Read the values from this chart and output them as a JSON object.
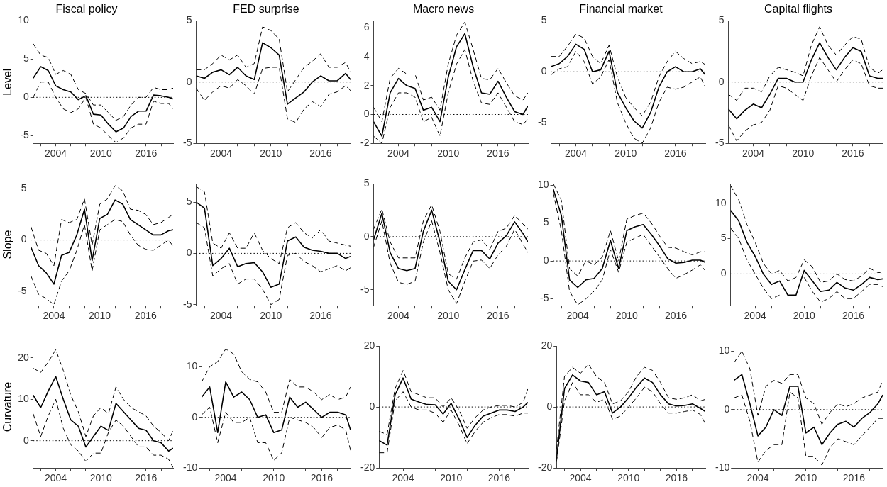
{
  "chart_data": [
    {
      "type": "line",
      "title": "Fiscal policy",
      "ylabel": "Level",
      "x": [
        2001,
        2002,
        2003,
        2004,
        2005,
        2006,
        2007,
        2008,
        2009,
        2010,
        2011,
        2012,
        2013,
        2014,
        2015,
        2016,
        2017,
        2018,
        2019,
        2019.6
      ],
      "xlim": [
        2001,
        2019.6
      ],
      "xticks": [
        {
          "value": 2002,
          "label": null
        },
        2004,
        {
          "value": 2006,
          "label": null
        },
        {
          "value": 2008,
          "label": null
        },
        2010,
        {
          "value": 2012,
          "label": null
        },
        {
          "value": 2014,
          "label": null
        },
        2016,
        {
          "value": 2018,
          "label": null
        }
      ],
      "ylim": [
        -6,
        10
      ],
      "yticks": [
        -5,
        0,
        5,
        10
      ],
      "grid": false,
      "legend": false,
      "ref_lines": [
        {
          "axis": "y",
          "value": 0,
          "line_style": "dotted",
          "color": "#000000"
        }
      ],
      "series": [
        {
          "color": "#000000",
          "line_style": "solid",
          "values": [
            2.5,
            4,
            3.5,
            1.5,
            1,
            0.7,
            -0.3,
            0.2,
            -2.2,
            -2.3,
            -3.5,
            -4.5,
            -4,
            -2.5,
            -1.8,
            -1.8,
            0.3,
            0.2,
            0,
            -0.2
          ]
        },
        {
          "color": "#000000",
          "line_style": "dashed",
          "values": [
            7,
            5.5,
            5.2,
            3,
            3.5,
            3,
            1,
            0.5,
            -1,
            -1,
            -2,
            -3,
            -2.5,
            -1,
            0,
            0,
            1.3,
            1,
            1,
            1.2
          ]
        },
        {
          "color": "#000000",
          "line_style": "dashed",
          "values": [
            0,
            2,
            2,
            0,
            -1.5,
            -2,
            -1.5,
            0,
            -3.5,
            -4,
            -5,
            -5.9,
            -5.3,
            -4,
            -3.5,
            -3.5,
            -0.5,
            -0.8,
            -0.8,
            -1.5
          ]
        }
      ]
    },
    {
      "type": "line",
      "title": "FED surprise",
      "x": [
        2001,
        2002,
        2003,
        2004,
        2005,
        2006,
        2007,
        2008,
        2009,
        2010,
        2011,
        2012,
        2013,
        2014,
        2015,
        2016,
        2017,
        2018,
        2019,
        2019.6
      ],
      "xlim": [
        2001,
        2019.6
      ],
      "xticks": [
        {
          "value": 2002,
          "label": null
        },
        2004,
        {
          "value": 2006,
          "label": null
        },
        {
          "value": 2008,
          "label": null
        },
        2010,
        {
          "value": 2012,
          "label": null
        },
        {
          "value": 2014,
          "label": null
        },
        2016,
        {
          "value": 2018,
          "label": null
        }
      ],
      "ylim": [
        -5,
        5
      ],
      "yticks": [
        -5,
        0,
        5
      ],
      "grid": false,
      "legend": false,
      "ref_lines": [
        {
          "axis": "y",
          "value": 0,
          "line_style": "dotted",
          "color": "#000000"
        }
      ],
      "series": [
        {
          "color": "#000000",
          "line_style": "solid",
          "values": [
            0.5,
            0.3,
            0.8,
            1,
            0.6,
            1.2,
            0.5,
            0.2,
            3.2,
            2.8,
            2.2,
            -1.8,
            -1.3,
            -0.8,
            0,
            0.5,
            0.1,
            0.1,
            0.7,
            0.2
          ]
        },
        {
          "color": "#000000",
          "line_style": "dashed",
          "values": [
            1,
            1,
            1.5,
            2.2,
            1.8,
            2.2,
            1.2,
            1.5,
            4.5,
            4.2,
            3.5,
            -0.8,
            0.2,
            1.2,
            1.7,
            2.3,
            1.2,
            1.2,
            1.6,
            0.8
          ]
        },
        {
          "color": "#000000",
          "line_style": "dashed",
          "values": [
            -0.5,
            -1.5,
            -0.8,
            -0.3,
            -0.5,
            0.2,
            -0.3,
            -1,
            1.1,
            1.2,
            1.2,
            -3,
            -3.3,
            -2.2,
            -1.6,
            -2,
            -1,
            -0.8,
            -0.3,
            -0.7
          ]
        }
      ]
    },
    {
      "type": "line",
      "title": "Macro news",
      "x": [
        2001,
        2002,
        2003,
        2004,
        2005,
        2006,
        2007,
        2008,
        2009,
        2010,
        2011,
        2012,
        2013,
        2014,
        2015,
        2016,
        2017,
        2018,
        2019,
        2019.6
      ],
      "xlim": [
        2001,
        2019.6
      ],
      "xticks": [
        {
          "value": 2002,
          "label": null
        },
        2004,
        {
          "value": 2006,
          "label": null
        },
        {
          "value": 2008,
          "label": null
        },
        2010,
        {
          "value": 2012,
          "label": null
        },
        {
          "value": 2014,
          "label": null
        },
        2016,
        {
          "value": 2018,
          "label": null
        }
      ],
      "ylim": [
        -2,
        6.5
      ],
      "yticks": [
        -2,
        0,
        2,
        4,
        6
      ],
      "grid": false,
      "legend": false,
      "ref_lines": [
        {
          "axis": "y",
          "value": 0,
          "line_style": "dotted",
          "color": "#000000"
        }
      ],
      "series": [
        {
          "color": "#000000",
          "line_style": "solid",
          "values": [
            -0.5,
            -1.5,
            1.5,
            2.5,
            2,
            1.8,
            0.3,
            0.5,
            -0.5,
            2.6,
            4.7,
            5.6,
            3.3,
            1.5,
            1.4,
            2.3,
            1.2,
            0.2,
            0,
            0.6
          ]
        },
        {
          "color": "#000000",
          "line_style": "dashed",
          "values": [
            0.5,
            -0.5,
            2.5,
            3.2,
            2.8,
            2.8,
            1,
            1.2,
            0.3,
            3.5,
            5.5,
            6.4,
            4.5,
            2.5,
            2.4,
            3.2,
            2.2,
            1.3,
            1,
            1.5
          ]
        },
        {
          "color": "#000000",
          "line_style": "dashed",
          "values": [
            -1.5,
            -2,
            0.5,
            1.5,
            1.5,
            1.2,
            -0.5,
            -0.2,
            -1.5,
            1.5,
            3.5,
            4.5,
            2.3,
            0.8,
            0.7,
            1.5,
            0.5,
            -0.5,
            -0.7,
            -0.3
          ]
        }
      ]
    },
    {
      "type": "line",
      "title": "Financial market",
      "x": [
        2001,
        2002,
        2003,
        2004,
        2005,
        2006,
        2007,
        2008,
        2009,
        2010,
        2011,
        2012,
        2013,
        2014,
        2015,
        2016,
        2017,
        2018,
        2019,
        2019.6
      ],
      "xlim": [
        2001,
        2019.6
      ],
      "xticks": [
        {
          "value": 2002,
          "label": null
        },
        2004,
        {
          "value": 2006,
          "label": null
        },
        {
          "value": 2008,
          "label": null
        },
        2010,
        {
          "value": 2012,
          "label": null
        },
        {
          "value": 2014,
          "label": null
        },
        2016,
        {
          "value": 2018,
          "label": null
        }
      ],
      "ylim": [
        -7,
        5
      ],
      "yticks": [
        -5,
        0,
        5
      ],
      "grid": false,
      "legend": false,
      "ref_lines": [
        {
          "axis": "y",
          "value": 0,
          "line_style": "dotted",
          "color": "#000000"
        }
      ],
      "series": [
        {
          "color": "#000000",
          "line_style": "solid",
          "values": [
            0.5,
            0.8,
            1.5,
            2.7,
            2.2,
            0,
            0.2,
            2,
            -2,
            -3.5,
            -4.8,
            -5.5,
            -4,
            -1.5,
            0,
            0.5,
            0,
            0,
            0.3,
            -0.3
          ]
        },
        {
          "color": "#000000",
          "line_style": "dashed",
          "values": [
            1.5,
            1.5,
            2.5,
            3.7,
            3.3,
            1.5,
            0.8,
            2.6,
            -0.5,
            -2.5,
            -3.5,
            -4.3,
            -3,
            -0.5,
            1,
            2,
            1.3,
            0.8,
            1,
            0.7
          ]
        },
        {
          "color": "#000000",
          "line_style": "dashed",
          "values": [
            -0.3,
            0.3,
            0.5,
            2,
            1,
            -1.2,
            -0.5,
            1.2,
            -3,
            -5,
            -6.5,
            -7,
            -5.5,
            -3,
            -1.5,
            -1.7,
            -1.5,
            -1,
            -0.5,
            -1.5
          ]
        }
      ]
    },
    {
      "type": "line",
      "title": "Capital flights",
      "x": [
        2001,
        2002,
        2003,
        2004,
        2005,
        2006,
        2007,
        2008,
        2009,
        2010,
        2011,
        2012,
        2013,
        2014,
        2015,
        2016,
        2017,
        2018,
        2019,
        2019.6
      ],
      "xlim": [
        2001,
        2019.6
      ],
      "xticks": [
        {
          "value": 2002,
          "label": null
        },
        2004,
        {
          "value": 2006,
          "label": null
        },
        {
          "value": 2008,
          "label": null
        },
        2010,
        {
          "value": 2012,
          "label": null
        },
        {
          "value": 2014,
          "label": null
        },
        2016,
        {
          "value": 2018,
          "label": null
        }
      ],
      "ylim": [
        -5,
        5
      ],
      "yticks": [
        -5,
        0,
        5
      ],
      "grid": false,
      "legend": false,
      "ref_lines": [
        {
          "axis": "y",
          "value": 0,
          "line_style": "dotted",
          "color": "#000000"
        }
      ],
      "series": [
        {
          "color": "#000000",
          "line_style": "solid",
          "values": [
            -2.2,
            -3,
            -2.3,
            -1.8,
            -2.1,
            -1,
            0.3,
            0.3,
            0,
            0,
            1.8,
            3.2,
            2,
            1,
            2,
            2.8,
            2.5,
            0.5,
            0.3,
            0.3
          ]
        },
        {
          "color": "#000000",
          "line_style": "dashed",
          "values": [
            -1,
            -1.5,
            -0.5,
            -0.5,
            -0.8,
            0.5,
            1.2,
            1,
            0.8,
            0.5,
            3,
            4.5,
            3,
            2.2,
            3,
            3.7,
            3.5,
            1.2,
            0.7,
            1
          ]
        },
        {
          "color": "#000000",
          "line_style": "dashed",
          "values": [
            -3.5,
            -4.8,
            -4,
            -3.5,
            -3.3,
            -2.3,
            -0.3,
            -0.5,
            -1,
            -1.5,
            0.5,
            2,
            1,
            0,
            1,
            1.8,
            1.5,
            -0.3,
            -0.5,
            -0.5
          ]
        }
      ]
    },
    {
      "type": "line",
      "ylabel": "Slope",
      "x": [
        2001,
        2002,
        2003,
        2004,
        2005,
        2006,
        2007,
        2008,
        2009,
        2010,
        2011,
        2012,
        2013,
        2014,
        2015,
        2016,
        2017,
        2018,
        2019,
        2019.6
      ],
      "xlim": [
        2001,
        2019.6
      ],
      "xticks": [
        {
          "value": 2002,
          "label": null
        },
        2004,
        {
          "value": 2006,
          "label": null
        },
        {
          "value": 2008,
          "label": null
        },
        2010,
        {
          "value": 2012,
          "label": null
        },
        {
          "value": 2014,
          "label": null
        },
        2016,
        {
          "value": 2018,
          "label": null
        }
      ],
      "ylim": [
        -6.4,
        5.5
      ],
      "yticks": [
        -5,
        0,
        5
      ],
      "grid": false,
      "legend": false,
      "ref_lines": [
        {
          "axis": "y",
          "value": 0,
          "line_style": "dotted",
          "color": "#000000"
        }
      ],
      "series": [
        {
          "color": "#000000",
          "line_style": "solid",
          "values": [
            -0.7,
            -2.5,
            -3.2,
            -4.3,
            -1.5,
            -1.2,
            0.5,
            3,
            -2,
            2.1,
            2.5,
            3.9,
            3.5,
            2,
            1.5,
            1,
            0.5,
            0.5,
            0.9,
            1
          ]
        },
        {
          "color": "#000000",
          "line_style": "dashed",
          "values": [
            1.3,
            -1,
            -1.3,
            -2.5,
            2,
            1.7,
            2,
            4,
            -0.5,
            3.5,
            4,
            5.3,
            4.8,
            3,
            2.9,
            2.5,
            1.5,
            1.7,
            2.2,
            2.5
          ]
        },
        {
          "color": "#000000",
          "line_style": "dashed",
          "values": [
            -3.5,
            -5.3,
            -5.7,
            -6.3,
            -4,
            -3,
            -1,
            1.5,
            -3,
            1,
            1.5,
            2,
            1.8,
            0.5,
            -0.5,
            -0.9,
            -1,
            -0.5,
            0,
            -0.6
          ]
        }
      ]
    },
    {
      "type": "line",
      "x": [
        2001,
        2002,
        2003,
        2004,
        2005,
        2006,
        2007,
        2008,
        2009,
        2010,
        2011,
        2012,
        2013,
        2014,
        2015,
        2016,
        2017,
        2018,
        2019,
        2019.6
      ],
      "xlim": [
        2001,
        2019.6
      ],
      "xticks": [
        {
          "value": 2002,
          "label": null
        },
        2004,
        {
          "value": 2006,
          "label": null
        },
        {
          "value": 2008,
          "label": null
        },
        2010,
        {
          "value": 2012,
          "label": null
        },
        {
          "value": 2014,
          "label": null
        },
        2016,
        {
          "value": 2018,
          "label": null
        }
      ],
      "ylim": [
        -5.1,
        6.8
      ],
      "yticks": [
        -5,
        0,
        5
      ],
      "grid": false,
      "legend": false,
      "ref_lines": [
        {
          "axis": "y",
          "value": 0,
          "line_style": "dotted",
          "color": "#000000"
        }
      ],
      "series": [
        {
          "color": "#000000",
          "line_style": "solid",
          "values": [
            5,
            4.4,
            -1.2,
            -0.5,
            0.5,
            -1.3,
            -1,
            -0.9,
            -1.8,
            -3.3,
            -3,
            1.2,
            1.6,
            0.6,
            0.3,
            0.2,
            0,
            0,
            -0.5,
            -0.3
          ]
        },
        {
          "color": "#000000",
          "line_style": "dashed",
          "values": [
            6.5,
            6,
            1,
            0.5,
            2,
            0.5,
            0.5,
            2,
            0.3,
            -0.5,
            -1,
            2.5,
            3,
            2,
            1.5,
            2.3,
            1.2,
            1,
            0.8,
            0.7
          ]
        },
        {
          "color": "#000000",
          "line_style": "dashed",
          "values": [
            3,
            2.5,
            -2.2,
            -1.5,
            -1,
            -3,
            -2.5,
            -2.5,
            -3.5,
            -5,
            -4.5,
            -0.2,
            0,
            -0.8,
            -1.2,
            -1.8,
            -1.5,
            -1.2,
            -1.7,
            -1.4
          ]
        }
      ]
    },
    {
      "type": "line",
      "x": [
        2001,
        2002,
        2003,
        2004,
        2005,
        2006,
        2007,
        2008,
        2009,
        2010,
        2011,
        2012,
        2013,
        2014,
        2015,
        2016,
        2017,
        2018,
        2019,
        2019.6
      ],
      "xlim": [
        2001,
        2019.6
      ],
      "xticks": [
        {
          "value": 2002,
          "label": null
        },
        2004,
        {
          "value": 2006,
          "label": null
        },
        {
          "value": 2008,
          "label": null
        },
        2010,
        {
          "value": 2012,
          "label": null
        },
        {
          "value": 2014,
          "label": null
        },
        2016,
        {
          "value": 2018,
          "label": null
        }
      ],
      "ylim": [
        -6.5,
        5
      ],
      "yticks": [
        -5,
        0,
        5
      ],
      "grid": false,
      "legend": false,
      "ref_lines": [
        {
          "axis": "y",
          "value": 0,
          "line_style": "dotted",
          "color": "#000000"
        }
      ],
      "series": [
        {
          "color": "#000000",
          "line_style": "solid",
          "values": [
            -0.3,
            2.2,
            -1.5,
            -3,
            -3.2,
            -3,
            0.5,
            2.5,
            -0.5,
            -4.2,
            -5,
            -3.1,
            -1.3,
            -1.3,
            -2.1,
            -0.6,
            0.1,
            1.4,
            0.3,
            -0.5
          ]
        },
        {
          "color": "#000000",
          "line_style": "dashed",
          "values": [
            0.7,
            2.6,
            -0.5,
            -2,
            -2,
            -2,
            1.5,
            3,
            0.5,
            -3.5,
            -4,
            -2,
            -0.5,
            -0.3,
            -1.2,
            0.5,
            0.8,
            2,
            1.2,
            0.7
          ]
        },
        {
          "color": "#000000",
          "line_style": "dashed",
          "values": [
            -1,
            1.5,
            -2.5,
            -4.3,
            -4.5,
            -4.2,
            -0.5,
            1.5,
            -1.5,
            -5,
            -6.3,
            -4.2,
            -2.3,
            -2.2,
            -3,
            -1.7,
            -0.9,
            0.7,
            -0.7,
            -1.5
          ]
        }
      ]
    },
    {
      "type": "line",
      "x": [
        2001,
        2002,
        2003,
        2004,
        2005,
        2006,
        2007,
        2008,
        2009,
        2010,
        2011,
        2012,
        2013,
        2014,
        2015,
        2016,
        2017,
        2018,
        2019,
        2019.6
      ],
      "xlim": [
        2001,
        2019.6
      ],
      "xticks": [
        {
          "value": 2002,
          "label": null
        },
        2004,
        {
          "value": 2006,
          "label": null
        },
        {
          "value": 2008,
          "label": null
        },
        2010,
        {
          "value": 2012,
          "label": null
        },
        {
          "value": 2014,
          "label": null
        },
        2016,
        {
          "value": 2018,
          "label": null
        }
      ],
      "ylim": [
        -5.9,
        10.2
      ],
      "yticks": [
        -5,
        0,
        5,
        10
      ],
      "grid": false,
      "legend": false,
      "ref_lines": [
        {
          "axis": "y",
          "value": 0,
          "line_style": "dotted",
          "color": "#000000"
        }
      ],
      "series": [
        {
          "color": "#000000",
          "line_style": "solid",
          "values": [
            9.5,
            6,
            -2.5,
            -3.5,
            -2.5,
            -2.3,
            -1,
            2.7,
            -1,
            4,
            4.5,
            4.8,
            3.5,
            2,
            0.3,
            -0.3,
            -0.2,
            0.1,
            0.1,
            -0.2
          ]
        },
        {
          "color": "#000000",
          "line_style": "dashed",
          "values": [
            10.2,
            8,
            -1,
            -2,
            0,
            -0.5,
            0.5,
            4,
            0,
            5.5,
            6,
            6.3,
            5,
            3.3,
            1.8,
            1.7,
            1.2,
            0.8,
            1.2,
            1.2
          ]
        },
        {
          "color": "#000000",
          "line_style": "dashed",
          "values": [
            9,
            4,
            -4,
            -5.8,
            -5,
            -4,
            -2.5,
            1.5,
            -1.5,
            2.5,
            3,
            3.5,
            2,
            0.5,
            -1,
            -2.3,
            -1.8,
            -1.2,
            -0.5,
            -1.3
          ]
        }
      ]
    },
    {
      "type": "line",
      "x": [
        2001,
        2002,
        2003,
        2004,
        2005,
        2006,
        2007,
        2008,
        2009,
        2010,
        2011,
        2012,
        2013,
        2014,
        2015,
        2016,
        2017,
        2018,
        2019,
        2019.6
      ],
      "xlim": [
        2001,
        2019.6
      ],
      "xticks": [
        {
          "value": 2002,
          "label": null
        },
        2004,
        {
          "value": 2006,
          "label": null
        },
        {
          "value": 2008,
          "label": null
        },
        2010,
        {
          "value": 2012,
          "label": null
        },
        {
          "value": 2014,
          "label": null
        },
        2016,
        {
          "value": 2018,
          "label": null
        }
      ],
      "ylim": [
        -4.5,
        12.8
      ],
      "yticks": [
        0,
        5,
        10
      ],
      "grid": false,
      "legend": false,
      "ref_lines": [
        {
          "axis": "y",
          "value": 0,
          "line_style": "dotted",
          "color": "#000000"
        }
      ],
      "series": [
        {
          "color": "#000000",
          "line_style": "solid",
          "values": [
            9,
            7.5,
            4.5,
            2.5,
            0,
            -1.5,
            -1,
            -3,
            -3,
            0.5,
            -1,
            -2.5,
            -2.3,
            -1.2,
            -2,
            -2.3,
            -1.5,
            -0.5,
            -0.8,
            -0.7
          ]
        },
        {
          "color": "#000000",
          "line_style": "dashed",
          "values": [
            12.5,
            10.5,
            7,
            4.5,
            1.5,
            0,
            0.5,
            -1,
            -0.5,
            2,
            1,
            -1.2,
            -1,
            0,
            -0.8,
            -1,
            -0.3,
            0.8,
            0.2,
            0.2
          ]
        },
        {
          "color": "#000000",
          "line_style": "dashed",
          "values": [
            6.5,
            5,
            2,
            0,
            -2,
            -3.5,
            -3,
            null,
            null,
            -0.5,
            -2.5,
            -4,
            -3.5,
            -2.5,
            -3.5,
            -3.5,
            -2.5,
            -1.5,
            -1.5,
            -1.8
          ]
        }
      ]
    },
    {
      "type": "line",
      "ylabel": "Curvature",
      "x": [
        2001,
        2002,
        2003,
        2004,
        2005,
        2006,
        2007,
        2008,
        2009,
        2010,
        2011,
        2012,
        2013,
        2014,
        2015,
        2016,
        2017,
        2018,
        2019,
        2019.6
      ],
      "xlim": [
        2001,
        2019.6
      ],
      "xticks": [
        {
          "value": 2002,
          "label": null
        },
        2004,
        {
          "value": 2006,
          "label": null
        },
        {
          "value": 2008,
          "label": null
        },
        2010,
        {
          "value": 2012,
          "label": null
        },
        {
          "value": 2014,
          "label": null
        },
        2016,
        {
          "value": 2018,
          "label": null
        }
      ],
      "ylim": [
        -6.6,
        22.9
      ],
      "yticks": [
        0,
        10,
        20
      ],
      "grid": false,
      "legend": false,
      "ref_lines": [
        {
          "axis": "y",
          "value": 0,
          "line_style": "dotted",
          "color": "#000000"
        }
      ],
      "series": [
        {
          "color": "#000000",
          "line_style": "solid",
          "values": [
            11,
            8,
            12,
            15.5,
            10,
            5,
            3.5,
            -1.5,
            1,
            3.5,
            2.5,
            9,
            7,
            5,
            3,
            2.5,
            0,
            -0.5,
            -2.5,
            -1.8
          ]
        },
        {
          "color": "#000000",
          "line_style": "dashed",
          "values": [
            17.5,
            16.5,
            19,
            22,
            17,
            11,
            7,
            1,
            6,
            8,
            6.5,
            13,
            10,
            8,
            7,
            6,
            3.5,
            2,
            0,
            2.5
          ]
        },
        {
          "color": "#000000",
          "line_style": "dashed",
          "values": [
            6.5,
            1,
            6,
            10,
            3,
            -1,
            -2.5,
            -5,
            -3,
            -3,
            2,
            5,
            3.5,
            1,
            -1.5,
            -1.5,
            -3.5,
            -3.5,
            -4.5,
            -6.5
          ]
        }
      ]
    },
    {
      "type": "line",
      "x": [
        2001,
        2002,
        2003,
        2004,
        2005,
        2006,
        2007,
        2008,
        2009,
        2010,
        2011,
        2012,
        2013,
        2014,
        2015,
        2016,
        2017,
        2018,
        2019,
        2019.6
      ],
      "xlim": [
        2001,
        2019.6
      ],
      "xticks": [
        {
          "value": 2002,
          "label": null
        },
        2004,
        {
          "value": 2006,
          "label": null
        },
        {
          "value": 2008,
          "label": null
        },
        2010,
        {
          "value": 2012,
          "label": null
        },
        {
          "value": 2014,
          "label": null
        },
        2016,
        {
          "value": 2018,
          "label": null
        }
      ],
      "ylim": [
        -10,
        14.1
      ],
      "yticks": [
        -10,
        0,
        10
      ],
      "grid": false,
      "legend": false,
      "ref_lines": [
        {
          "axis": "y",
          "value": 0,
          "line_style": "dotted",
          "color": "#000000"
        }
      ],
      "series": [
        {
          "color": "#000000",
          "line_style": "solid",
          "values": [
            4,
            6,
            -3,
            7,
            4,
            5,
            3.5,
            0,
            0.5,
            -3,
            -2.5,
            4,
            2,
            3,
            1.5,
            0,
            1,
            1,
            0.5,
            -2.5
          ]
        },
        {
          "color": "#000000",
          "line_style": "dashed",
          "values": [
            7,
            10,
            11,
            13.5,
            12.5,
            9,
            7.5,
            7,
            5,
            1,
            1,
            7.5,
            6,
            6,
            5,
            3.5,
            4.5,
            3.5,
            4,
            6
          ]
        },
        {
          "color": "#000000",
          "line_style": "dashed",
          "values": [
            0.5,
            2,
            -5,
            1,
            -1,
            -1,
            0,
            -5,
            -5,
            -8.5,
            -7,
            0,
            -0.5,
            -1,
            -2,
            -4,
            -2,
            -1.5,
            -2.5,
            -6.5
          ]
        }
      ]
    },
    {
      "type": "line",
      "x": [
        2001,
        2002,
        2003,
        2004,
        2005,
        2006,
        2007,
        2008,
        2009,
        2010,
        2011,
        2012,
        2013,
        2014,
        2015,
        2016,
        2017,
        2018,
        2019,
        2019.6
      ],
      "xlim": [
        2001,
        2019.6
      ],
      "xticks": [
        {
          "value": 2002,
          "label": null
        },
        2004,
        {
          "value": 2006,
          "label": null
        },
        {
          "value": 2008,
          "label": null
        },
        2010,
        {
          "value": 2012,
          "label": null
        },
        {
          "value": 2014,
          "label": null
        },
        2016,
        {
          "value": 2018,
          "label": null
        }
      ],
      "ylim": [
        -20,
        20
      ],
      "yticks": [
        -20,
        0,
        20
      ],
      "grid": false,
      "legend": false,
      "ref_lines": [
        {
          "axis": "y",
          "value": 0,
          "line_style": "dotted",
          "color": "#000000"
        }
      ],
      "series": [
        {
          "color": "#000000",
          "line_style": "solid",
          "values": [
            -11,
            -12.5,
            4,
            9.5,
            2.6,
            1.6,
            0.8,
            0.7,
            -2.3,
            1.2,
            -4,
            -10,
            -6,
            -3,
            -2,
            -1,
            -1,
            -1.5,
            0,
            1.5
          ]
        },
        {
          "color": "#000000",
          "line_style": "dashed",
          "values": [
            -8,
            -9,
            6,
            12,
            5,
            4,
            3,
            3,
            0,
            3,
            -1,
            -7,
            -3.5,
            -1,
            0,
            0.5,
            0.5,
            0,
            1.5,
            6
          ]
        },
        {
          "color": "#000000",
          "line_style": "dashed",
          "values": [
            -15,
            -15,
            2,
            5,
            0,
            -1,
            -1,
            -2,
            -5,
            -1,
            -6,
            -12,
            -8,
            -5,
            -3.5,
            -2.5,
            -2.5,
            -3,
            -2,
            -2
          ]
        }
      ]
    },
    {
      "type": "line",
      "x": [
        2001,
        2002,
        2003,
        2004,
        2005,
        2006,
        2007,
        2008,
        2009,
        2010,
        2011,
        2012,
        2013,
        2014,
        2015,
        2016,
        2017,
        2018,
        2019,
        2019.6
      ],
      "xlim": [
        2001,
        2019.6
      ],
      "xticks": [
        {
          "value": 2002,
          "label": null
        },
        2004,
        {
          "value": 2006,
          "label": null
        },
        {
          "value": 2008,
          "label": null
        },
        2010,
        {
          "value": 2012,
          "label": null
        },
        {
          "value": 2014,
          "label": null
        },
        2016,
        {
          "value": 2018,
          "label": null
        }
      ],
      "ylim": [
        -20,
        20
      ],
      "yticks": [
        -20,
        0,
        20
      ],
      "grid": false,
      "legend": false,
      "ref_lines": [
        {
          "axis": "y",
          "value": 0,
          "line_style": "dotted",
          "color": "#000000"
        }
      ],
      "series": [
        {
          "color": "#000000",
          "line_style": "solid",
          "values": [
            -17,
            6,
            10.5,
            8.5,
            8,
            4,
            5,
            -2,
            0,
            3,
            6.5,
            9.5,
            8,
            4,
            1,
            0.3,
            0.5,
            1,
            -0.5,
            -1.5
          ]
        },
        {
          "color": "#000000",
          "line_style": "dashed",
          "values": [
            -14,
            10,
            13,
            11,
            14,
            10,
            8,
            1,
            2,
            5,
            10,
            13,
            12,
            8,
            3,
            2.5,
            3,
            4,
            2,
            2.5
          ]
        },
        {
          "color": "#000000",
          "line_style": "dashed",
          "values": [
            -18,
            2,
            8,
            4,
            4,
            1.5,
            2.5,
            -4,
            -3,
            0,
            3,
            6.5,
            5,
            1,
            -2,
            -2,
            -1.5,
            -1,
            -2.5,
            -5.5
          ]
        }
      ]
    },
    {
      "type": "line",
      "x": [
        2001,
        2002,
        2003,
        2004,
        2005,
        2006,
        2007,
        2008,
        2009,
        2010,
        2011,
        2012,
        2013,
        2014,
        2015,
        2016,
        2017,
        2018,
        2019,
        2019.6
      ],
      "xlim": [
        2001,
        2019.6
      ],
      "xticks": [
        {
          "value": 2002,
          "label": null
        },
        2004,
        {
          "value": 2006,
          "label": null
        },
        {
          "value": 2008,
          "label": null
        },
        2010,
        {
          "value": 2012,
          "label": null
        },
        {
          "value": 2014,
          "label": null
        },
        2016,
        {
          "value": 2018,
          "label": null
        }
      ],
      "ylim": [
        -10,
        10.9
      ],
      "yticks": [
        -10,
        0,
        10
      ],
      "grid": false,
      "legend": false,
      "ref_lines": [
        {
          "axis": "y",
          "value": 0,
          "line_style": "dotted",
          "color": "#000000"
        }
      ],
      "series": [
        {
          "color": "#000000",
          "line_style": "solid",
          "values": [
            5,
            6,
            1,
            -4.5,
            -3,
            0,
            -1,
            4,
            4,
            -4,
            -3,
            -6,
            -4,
            -2.5,
            -2,
            -3,
            -1.5,
            -0.5,
            1,
            2.5
          ]
        },
        {
          "color": "#000000",
          "line_style": "dashed",
          "values": [
            8,
            10,
            7,
            -1,
            4,
            5,
            4.5,
            6,
            6,
            2,
            1,
            -2.5,
            -0.5,
            1,
            0.5,
            1,
            2,
            2.5,
            3,
            5
          ]
        },
        {
          "color": "#000000",
          "line_style": "dashed",
          "values": [
            2,
            2.5,
            -2,
            -9,
            -7,
            -6,
            -6,
            3,
            2,
            -8,
            -8,
            -9.5,
            -6.5,
            -5,
            -5.5,
            -6,
            -4.5,
            -3,
            -1.5,
            -1.5
          ]
        }
      ]
    }
  ]
}
